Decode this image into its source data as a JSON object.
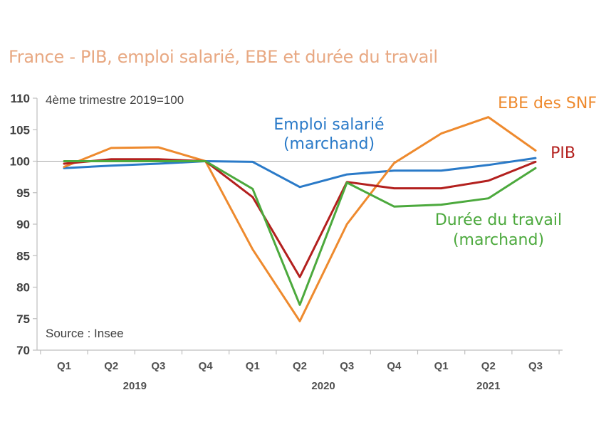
{
  "title": "France - PIB, emploi salarié,  EBE et durée du travail",
  "colors": {
    "emploi": "#2A7AC8",
    "ebe": "#EE8A2E",
    "pib": "#B3201E",
    "duree": "#4CA93D",
    "title": "#E8A882",
    "axis": "#BFBFBF"
  },
  "chart_data": {
    "type": "line",
    "title": "France - PIB, emploi salarié,  EBE et durée du travail",
    "subtitle": "4ème trimestre 2019=100",
    "source": "Source : Insee",
    "categories": [
      "Q1",
      "Q2",
      "Q3",
      "Q4",
      "Q1",
      "Q2",
      "Q3",
      "Q4",
      "Q1",
      "Q2",
      "Q3"
    ],
    "years": [
      {
        "label": "2019",
        "span": [
          0,
          3
        ]
      },
      {
        "label": "2020",
        "span": [
          4,
          7
        ]
      },
      {
        "label": "2021",
        "span": [
          8,
          10
        ]
      }
    ],
    "ylim": [
      70,
      110
    ],
    "yticks": [
      70,
      75,
      80,
      85,
      90,
      95,
      100,
      105,
      110
    ],
    "reference_line": 100,
    "series": [
      {
        "key": "emploi",
        "name": "Emploi salarié (marchand)",
        "label_lines": [
          "Emploi salarié",
          "(marchand)"
        ],
        "color": "#2A7AC8",
        "values": [
          98.9,
          99.3,
          99.6,
          100.0,
          99.9,
          95.9,
          97.9,
          98.5,
          98.5,
          99.4,
          100.5
        ]
      },
      {
        "key": "ebe",
        "name": "EBE des SNF",
        "label_lines": [
          "EBE des SNF"
        ],
        "color": "#EE8A2E",
        "values": [
          99.1,
          102.1,
          102.2,
          100.0,
          86.0,
          74.6,
          90.0,
          99.7,
          104.4,
          107.0,
          101.7
        ]
      },
      {
        "key": "pib",
        "name": "PIB",
        "label_lines": [
          "PIB"
        ],
        "color": "#B3201E",
        "values": [
          99.6,
          100.3,
          100.3,
          100.0,
          94.3,
          81.6,
          96.7,
          95.7,
          95.7,
          96.9,
          99.9
        ]
      },
      {
        "key": "duree",
        "name": "Durée du travail (marchand)",
        "label_lines": [
          "Durée du travail",
          "(marchand)"
        ],
        "color": "#4CA93D",
        "values": [
          100.0,
          100.0,
          100.0,
          100.0,
          95.6,
          77.2,
          96.6,
          92.8,
          93.1,
          94.1,
          98.9
        ]
      }
    ]
  }
}
